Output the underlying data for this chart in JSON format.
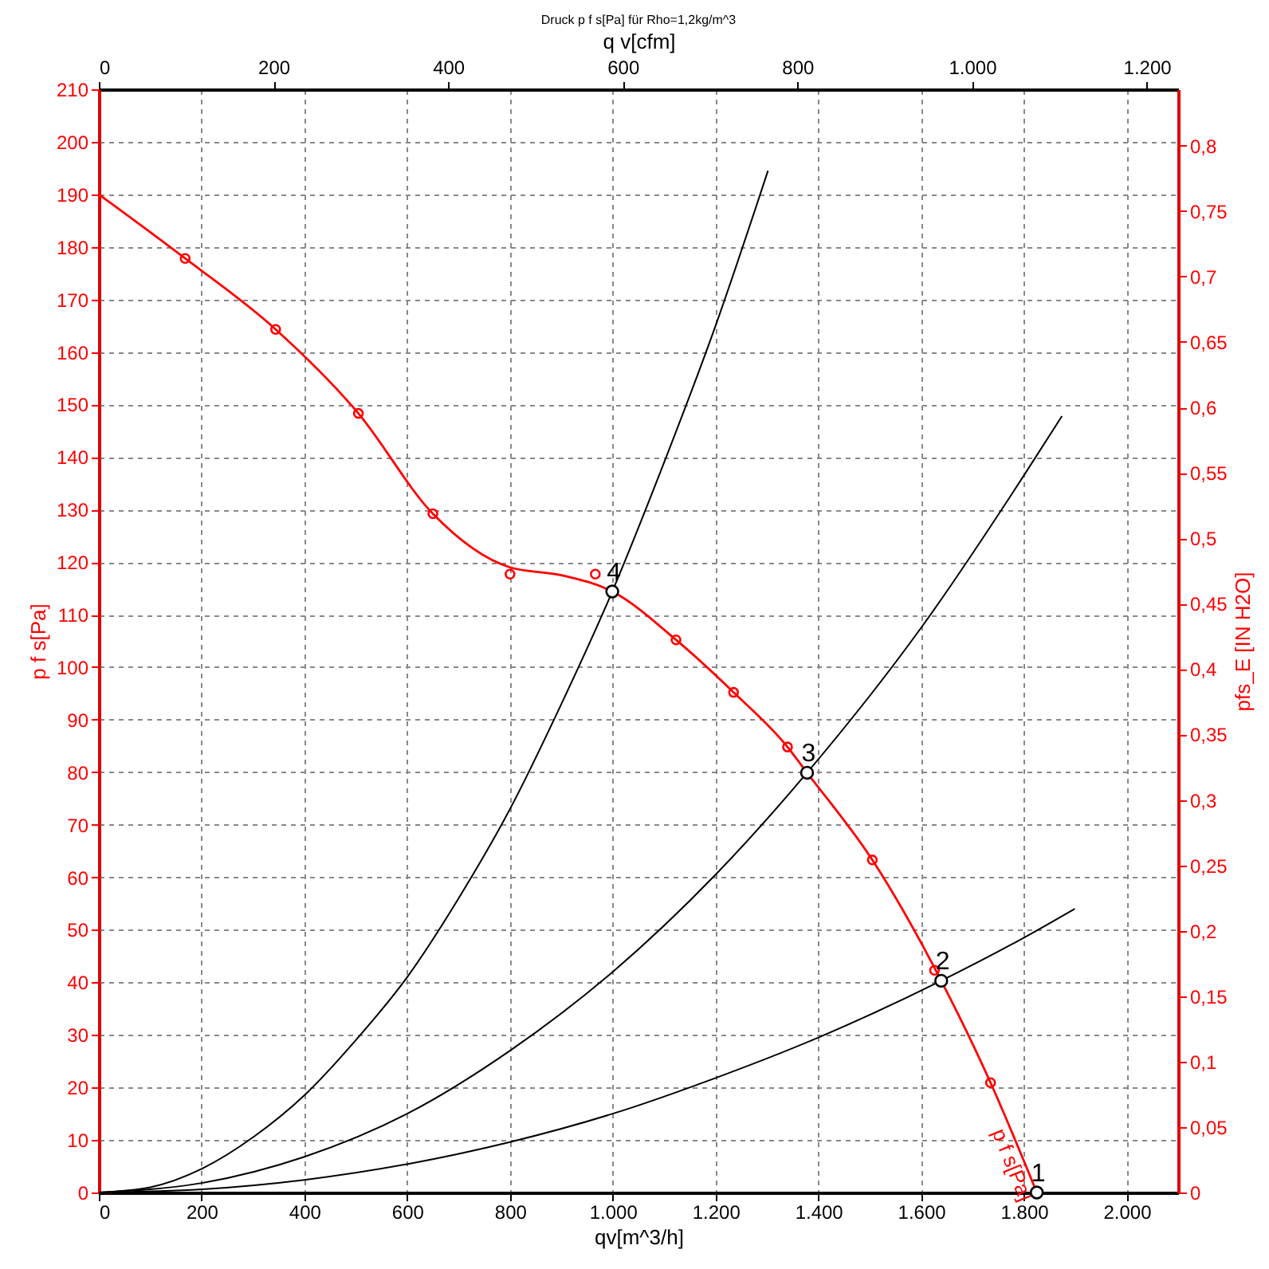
{
  "chart_data": {
    "type": "line",
    "title": "Druck p f s[Pa] für Rho=1,2kg/m^3",
    "xlabel": "qv[m^3/h]",
    "x2label": "q v[cfm]",
    "ylabel": "p f s[Pa]",
    "y2label": "pfs_E [IN H2O]",
    "xlim": [
      0,
      2100
    ],
    "xticks": [
      0,
      200,
      400,
      600,
      800,
      {
        "value": 1000,
        "label": "1.000"
      },
      {
        "value": 1200,
        "label": "1.200"
      },
      {
        "value": 1400,
        "label": "1.400"
      },
      {
        "value": 1600,
        "label": "1.600"
      },
      {
        "value": 1800,
        "label": "1.800"
      },
      {
        "value": 2000,
        "label": "2.000"
      }
    ],
    "x2lim": [
      0,
      1236
    ],
    "x2ticks": [
      0,
      200,
      400,
      600,
      800,
      {
        "value": 1000,
        "label": "1.000"
      },
      {
        "value": 1200,
        "label": "1.200"
      }
    ],
    "ylim": [
      0,
      210
    ],
    "yticks": [
      0,
      10,
      20,
      30,
      40,
      50,
      60,
      70,
      80,
      90,
      100,
      110,
      120,
      130,
      140,
      150,
      160,
      170,
      180,
      190,
      200,
      210
    ],
    "y2lim": [
      0,
      0.8431
    ],
    "y2ticks": [
      0,
      {
        "value": 0.05,
        "label": "0,05"
      },
      {
        "value": 0.1,
        "label": "0,1"
      },
      {
        "value": 0.15,
        "label": "0,15"
      },
      {
        "value": 0.2,
        "label": "0,2"
      },
      {
        "value": 0.25,
        "label": "0,25"
      },
      {
        "value": 0.3,
        "label": "0,3"
      },
      {
        "value": 0.35,
        "label": "0,35"
      },
      {
        "value": 0.4,
        "label": "0,4"
      },
      {
        "value": 0.45,
        "label": "0,45"
      },
      {
        "value": 0.5,
        "label": "0,5"
      },
      {
        "value": 0.55,
        "label": "0,55"
      },
      {
        "value": 0.6,
        "label": "0,6"
      },
      {
        "value": 0.65,
        "label": "0,65"
      },
      {
        "value": 0.7,
        "label": "0,7"
      },
      {
        "value": 0.75,
        "label": "0,75"
      },
      {
        "value": 0.8,
        "label": "0,8"
      }
    ],
    "grid": true,
    "series": [
      {
        "name": "p f s[Pa]",
        "type": "line",
        "color": "#ff0000",
        "marker": "none",
        "x": [
          0,
          168,
          344,
          505,
          650,
          800,
          900,
          999,
          1123,
          1235,
          1340,
          1378,
          1505,
          1639,
          1735,
          1825
        ],
        "values": [
          190,
          177.8,
          164.3,
          148.3,
          129.2,
          119,
          117.5,
          114.4,
          105.2,
          95.2,
          84.8,
          79.9,
          63.3,
          40.3,
          20.9,
          0
        ]
      },
      {
        "type": "scatter",
        "color": "#ff0000",
        "marker": "circle",
        "x": [
          168,
          344,
          505,
          650,
          800,
          966,
          1123,
          1235,
          1340,
          1505,
          1626,
          1735
        ],
        "values": [
          177.8,
          164.3,
          148.3,
          129.2,
          117.7,
          117.7,
          105.2,
          95.2,
          84.8,
          63.3,
          42.3,
          20.9
        ]
      },
      {
        "type": "line",
        "color": "#000000",
        "marker": "none",
        "x": [
          0,
          100,
          200,
          300,
          400,
          500,
          600,
          700,
          800,
          900,
          999,
          1100,
          1200,
          1302
        ],
        "values": [
          0,
          1,
          4.5,
          10.5,
          18.5,
          29,
          41,
          56,
          73,
          93,
          114.4,
          139,
          165,
          194.5
        ]
      },
      {
        "type": "line",
        "color": "#000000",
        "marker": "none",
        "x": [
          0,
          200,
          400,
          600,
          800,
          1000,
          1200,
          1378,
          1600,
          1800,
          1874
        ],
        "values": [
          0,
          1.8,
          6.8,
          15,
          27,
          42,
          60.5,
          79.9,
          107.5,
          136.5,
          147.8
        ]
      },
      {
        "type": "line",
        "color": "#000000",
        "marker": "none",
        "x": [
          0,
          200,
          400,
          600,
          800,
          1000,
          1200,
          1400,
          1639,
          1800,
          1899
        ],
        "values": [
          0,
          0.6,
          2.4,
          5.4,
          9.6,
          15,
          21.8,
          29.5,
          40.3,
          48.5,
          54
        ]
      },
      {
        "type": "scatter",
        "color": "#000000",
        "marker": "circle",
        "x": [
          999,
          1378,
          1639,
          1825
        ],
        "values": [
          114.4,
          79.9,
          40.3,
          0
        ]
      }
    ],
    "annotations": [
      {
        "text": "4",
        "x": 999,
        "y": 114.4
      },
      {
        "text": "3",
        "x": 1378,
        "y": 79.9
      },
      {
        "text": "2",
        "x": 1639,
        "y": 40.3
      },
      {
        "text": "1",
        "x": 1825,
        "y": 0
      }
    ]
  }
}
